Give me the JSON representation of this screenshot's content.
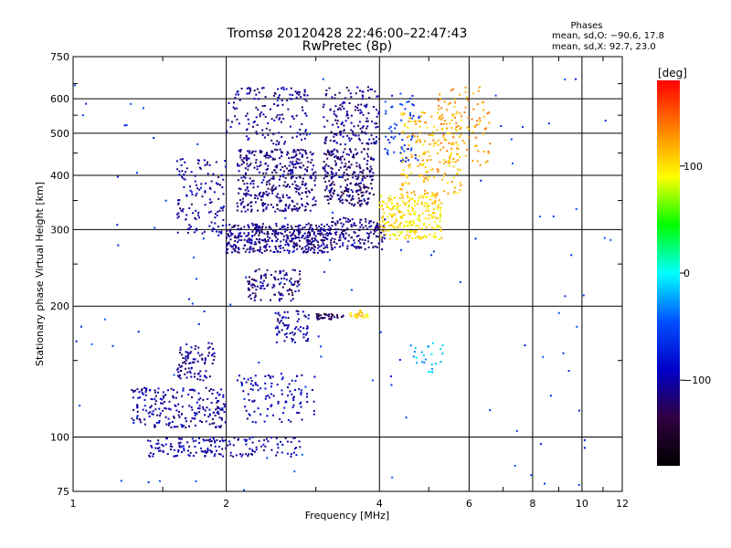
{
  "chart_data": {
    "type": "scatter",
    "title": "Tromsø 20120428 22:46:00–22:47:43",
    "subtitle": "RwPretec (8p)",
    "xlabel": "Frequency [MHz]",
    "ylabel": "Stationary phase Virtual Height [km]",
    "x_scale": "log",
    "y_scale": "log",
    "xlim": [
      1,
      12
    ],
    "ylim": [
      75,
      750
    ],
    "x_ticks": [
      1,
      2,
      4,
      6,
      8,
      10,
      12
    ],
    "y_ticks": [
      75,
      100,
      200,
      300,
      400,
      500,
      600,
      750
    ],
    "grid": true,
    "stats": {
      "heading": "Phases",
      "line_o": "mean, sd,O: −90.6, 17.8",
      "line_x": "mean, sd,X:  92.7, 23.0"
    },
    "colorbar": {
      "label": "[deg]",
      "range": [
        -180,
        180
      ],
      "ticks": [
        100,
        0,
        -100
      ],
      "tick_labels": [
        "100",
        "0",
        "−100"
      ],
      "colors": [
        "#ff0000",
        "#ff8000",
        "#ffff00",
        "#00ff00",
        "#00ffff",
        "#0050ff",
        "#0000c8",
        "#300040",
        "#000000"
      ]
    },
    "series": [
      {
        "clusters": [
          {
            "x": [
              2.0,
              3.2
            ],
            "y": [
              265,
              310
            ],
            "phase": -110,
            "n": 420
          },
          {
            "x": [
              2.1,
              3.0
            ],
            "y": [
              330,
              460
            ],
            "phase": -112,
            "n": 380
          },
          {
            "x": [
              2.0,
              2.9
            ],
            "y": [
              470,
              640
            ],
            "phase": -105,
            "n": 150
          },
          {
            "x": [
              3.1,
              3.9
            ],
            "y": [
              340,
              460
            ],
            "phase": -118,
            "n": 260
          },
          {
            "x": [
              3.1,
              4.0
            ],
            "y": [
              470,
              640
            ],
            "phase": -110,
            "n": 160
          },
          {
            "x": [
              3.2,
              4.1
            ],
            "y": [
              270,
              320
            ],
            "phase": -112,
            "n": 160
          },
          {
            "x": [
              1.6,
              2.0
            ],
            "y": [
              290,
              440
            ],
            "phase": -105,
            "n": 130
          },
          {
            "x": [
              2.2,
              2.8
            ],
            "y": [
              205,
              245
            ],
            "phase": -115,
            "n": 110
          },
          {
            "x": [
              2.5,
              2.9
            ],
            "y": [
              165,
              195
            ],
            "phase": -100,
            "n": 70
          },
          {
            "x": [
              3.0,
              3.4
            ],
            "y": [
              186,
              192
            ],
            "phase": -125,
            "n": 35
          },
          {
            "x": [
              3.5,
              3.8
            ],
            "y": [
              188,
              196
            ],
            "phase": 105,
            "n": 25
          },
          {
            "x": [
              1.3,
              2.0
            ],
            "y": [
              105,
              130
            ],
            "phase": -105,
            "n": 220
          },
          {
            "x": [
              1.6,
              1.9
            ],
            "y": [
              135,
              165
            ],
            "phase": -108,
            "n": 90
          },
          {
            "x": [
              1.4,
              2.8
            ],
            "y": [
              90,
              100
            ],
            "phase": -100,
            "n": 170
          },
          {
            "x": [
              2.1,
              3.0
            ],
            "y": [
              108,
              140
            ],
            "phase": -95,
            "n": 110
          },
          {
            "x": [
              4.0,
              5.3
            ],
            "y": [
              285,
              360
            ],
            "phase": 100,
            "n": 240
          },
          {
            "x": [
              4.4,
              5.8
            ],
            "y": [
              360,
              560
            ],
            "phase": 115,
            "n": 200
          },
          {
            "x": [
              5.2,
              6.6
            ],
            "y": [
              420,
              640
            ],
            "phase": 125,
            "n": 100
          },
          {
            "x": [
              4.1,
              4.8
            ],
            "y": [
              430,
              620
            ],
            "phase": -60,
            "n": 60
          },
          {
            "x": [
              4.6,
              5.4
            ],
            "y": [
              140,
              165
            ],
            "phase": -20,
            "n": 25
          },
          {
            "x": [
              1.0,
              12.0
            ],
            "y": [
              75,
              700
            ],
            "phase": -60,
            "n": 120
          }
        ]
      }
    ]
  }
}
